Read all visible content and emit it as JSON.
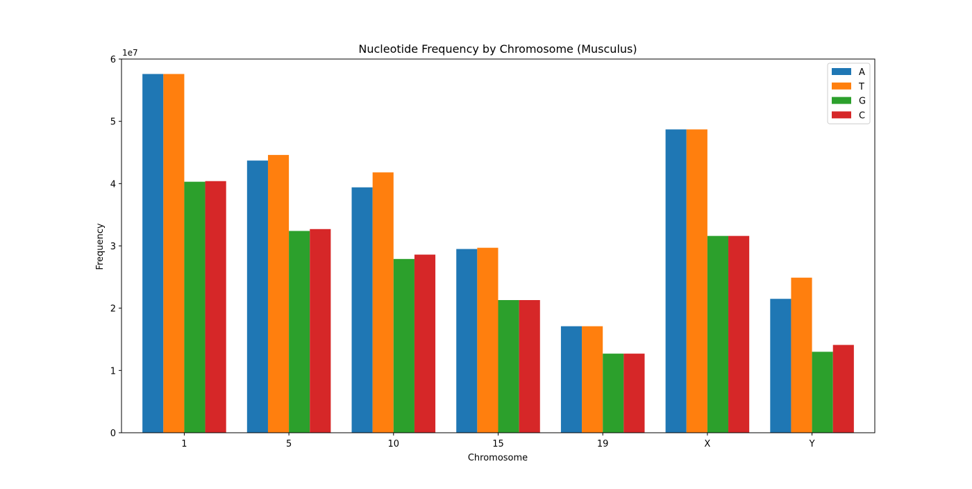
{
  "chart_data": {
    "type": "bar",
    "title": "Nucleotide Frequency by Chromosome (Musculus)",
    "xlabel": "Chromosome",
    "ylabel": "Frequency",
    "y_offset_label": "1e7",
    "categories": [
      "1",
      "5",
      "10",
      "15",
      "19",
      "X",
      "Y"
    ],
    "ylim": [
      0,
      60000000
    ],
    "yticks": [
      0,
      10000000,
      20000000,
      30000000,
      40000000,
      50000000,
      60000000
    ],
    "ytick_labels": [
      "0",
      "1",
      "2",
      "3",
      "4",
      "5",
      "6"
    ],
    "grid": false,
    "legend_position": "top-right",
    "series": [
      {
        "name": "A",
        "color": "#1f77b4",
        "values": [
          57600000,
          43700000,
          39400000,
          29500000,
          17100000,
          48700000,
          21500000
        ]
      },
      {
        "name": "T",
        "color": "#ff7f0e",
        "values": [
          57600000,
          44600000,
          41800000,
          29700000,
          17100000,
          48700000,
          24900000
        ]
      },
      {
        "name": "G",
        "color": "#2ca02c",
        "values": [
          40300000,
          32400000,
          27900000,
          21300000,
          12700000,
          31600000,
          13000000
        ]
      },
      {
        "name": "C",
        "color": "#d62728",
        "values": [
          40400000,
          32700000,
          28600000,
          21300000,
          12700000,
          31600000,
          14100000
        ]
      }
    ]
  }
}
